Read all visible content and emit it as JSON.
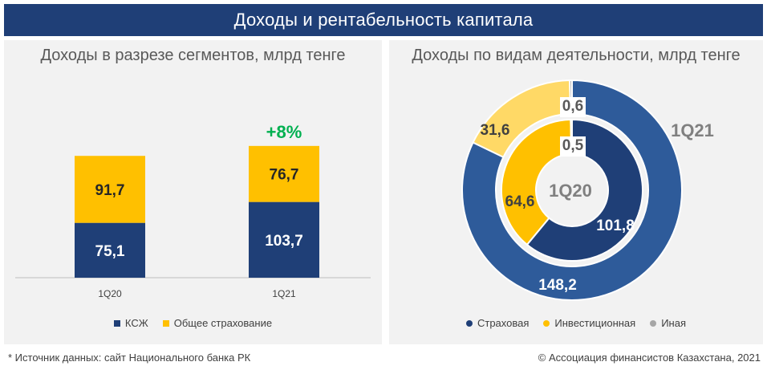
{
  "header": {
    "title": "Доходы и рентабельность капитала"
  },
  "colors": {
    "navy": "#1f3f77",
    "amber": "#ffc000",
    "amber_light": "#ffd966",
    "navy_ring": "#2e5b9a",
    "gray": "#a6a6a6",
    "green": "#00b050"
  },
  "footer": {
    "source": "* Источник данных: сайт Национального банка РК",
    "copyright": "© Ассоциация финансистов Казахстана, 2021"
  },
  "chart_data": [
    {
      "type": "bar",
      "stacked": true,
      "title": "Доходы в разрезе сегментов, млрд тенге",
      "categories": [
        "1Q20",
        "1Q21"
      ],
      "series": [
        {
          "name": "КСЖ",
          "values": [
            75.1,
            103.7
          ],
          "labels": [
            "75,1",
            "103,7"
          ],
          "color": "#1f3f77"
        },
        {
          "name": "Общее страхование",
          "values": [
            91.7,
            76.7
          ],
          "labels": [
            "91,7",
            "76,7"
          ],
          "color": "#ffc000"
        }
      ],
      "annotations": [
        {
          "category": "1Q21",
          "text": "+8%",
          "color": "#00b050"
        }
      ],
      "legend": "bottom",
      "grid": false
    },
    {
      "type": "pie",
      "donut": true,
      "title": "Доходы по видам деятельности, млрд тенге",
      "categories": [
        "Страховая",
        "Инвестиционная",
        "Иная"
      ],
      "rings": [
        {
          "name": "1Q20",
          "values": [
            101.8,
            64.6,
            0.5
          ],
          "labels": [
            "101,8",
            "64,6",
            "0,5"
          ]
        },
        {
          "name": "1Q21",
          "values": [
            148.2,
            31.6,
            0.6
          ],
          "labels": [
            "148,2",
            "31,6",
            "0,6"
          ]
        }
      ],
      "legend": "bottom"
    }
  ]
}
